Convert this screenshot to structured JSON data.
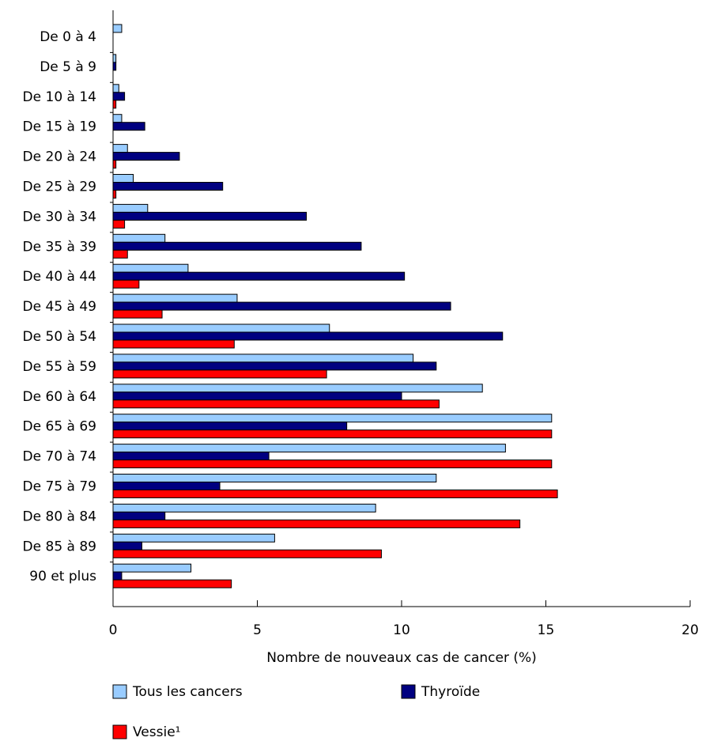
{
  "chart_data": {
    "type": "bar",
    "orientation": "horizontal",
    "xlabel": "Nombre de nouveaux cas de cancer (%)",
    "xlim": [
      0,
      20
    ],
    "xticks": [
      "0",
      "5",
      "10",
      "15",
      "20"
    ],
    "grid": false,
    "legend_position": "bottom",
    "categories": [
      "De 0 à 4",
      "De 5 à 9",
      "De 10 à 14",
      "De 15 à 19",
      "De 20 à 24",
      "De 25 à 29",
      "De 30 à 34",
      "De 35 à 39",
      "De 40 à 44",
      "De 45 à 49",
      "De 50 à 54",
      "De 55 à 59",
      "De 60 à 64",
      "De 65 à 69",
      "De 70 à 74",
      "De 75 à 79",
      "De 80 à 84",
      "De 85 à 89",
      "90 et plus"
    ],
    "series": [
      {
        "name": "Tous les cancers",
        "color": "#99ccff",
        "values": [
          0.3,
          0.1,
          0.2,
          0.3,
          0.5,
          0.7,
          1.2,
          1.8,
          2.6,
          4.3,
          7.5,
          10.4,
          12.8,
          15.2,
          13.6,
          11.2,
          9.1,
          5.6,
          2.7
        ]
      },
      {
        "name": "Thyroïde",
        "color": "#000080",
        "values": [
          0.0,
          0.1,
          0.4,
          1.1,
          2.3,
          3.8,
          6.7,
          8.6,
          10.1,
          11.7,
          13.5,
          11.2,
          10.0,
          8.1,
          5.4,
          3.7,
          1.8,
          1.0,
          0.3
        ]
      },
      {
        "name": "Vessie¹",
        "color": "#ff0000",
        "values": [
          0.0,
          0.0,
          0.1,
          0.0,
          0.1,
          0.1,
          0.4,
          0.5,
          0.9,
          1.7,
          4.2,
          7.4,
          11.3,
          15.2,
          15.2,
          15.4,
          14.1,
          9.3,
          4.1
        ]
      }
    ]
  }
}
